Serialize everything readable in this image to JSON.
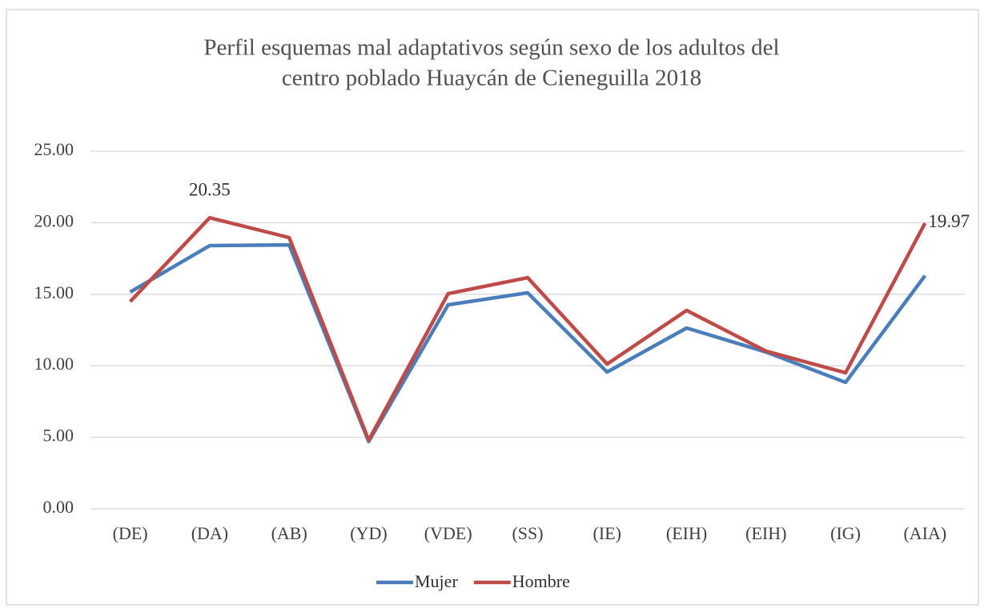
{
  "chart_data": {
    "type": "line",
    "title": [
      "Perfil esquemas mal adaptativos según sexo de los adultos del",
      "centro poblado Huaycán de Cieneguilla 2018"
    ],
    "categories": [
      "(DE)",
      "(DA)",
      "(AB)",
      "(YD)",
      "(VDE)",
      "(SS)",
      "(IE)",
      "(EIH)",
      "(EIH)",
      "(IG)",
      "(AIA)"
    ],
    "series": [
      {
        "name": "Mujer",
        "color": "#4a7ebb",
        "values": [
          15.15,
          18.4,
          18.45,
          4.7,
          14.26,
          15.1,
          9.56,
          12.64,
          10.96,
          8.84,
          16.3
        ]
      },
      {
        "name": "Hombre",
        "color": "#be4b48",
        "values": [
          14.49,
          20.35,
          18.96,
          4.8,
          15.04,
          16.16,
          10.12,
          13.87,
          11.02,
          9.51,
          19.97
        ],
        "value_labels": [
          "",
          "20.35",
          "",
          "",
          "",
          "",
          "",
          "",
          "",
          "",
          "19.97"
        ]
      }
    ],
    "ylim": [
      0,
      25
    ],
    "yticks": [
      {
        "value": 0,
        "label": "0.00"
      },
      {
        "value": 5,
        "label": "5.00"
      },
      {
        "value": 10,
        "label": "10.00"
      },
      {
        "value": 15,
        "label": "15.00"
      },
      {
        "value": 20,
        "label": "20.00"
      },
      {
        "value": 25,
        "label": "25.00"
      }
    ],
    "grid": true,
    "legend": "bottom"
  }
}
